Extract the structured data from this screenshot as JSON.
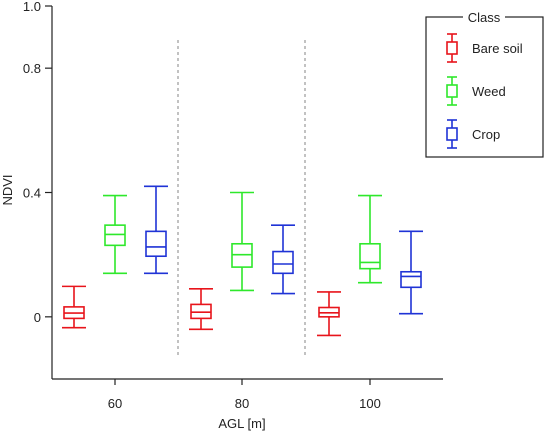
{
  "chart_data": {
    "type": "box",
    "xlabel": "AGL [m]",
    "ylabel": "NDVI",
    "ylim": [
      -0.2,
      1.0
    ],
    "yticks": [
      {
        "value": 0,
        "label": "0"
      },
      {
        "value": 0.4,
        "label": "0.4"
      },
      {
        "value": 0.8,
        "label": "0.8"
      },
      {
        "value": 1.0,
        "label": "1.0"
      }
    ],
    "categories": [
      "60",
      "80",
      "100"
    ],
    "legend": {
      "title": "Class",
      "placement": "top-right"
    },
    "series": [
      {
        "name": "Bare soil",
        "color": "#e8141b",
        "boxes": [
          {
            "min": -0.035,
            "q1": -0.005,
            "median": 0.012,
            "q3": 0.032,
            "max": 0.098
          },
          {
            "min": -0.04,
            "q1": -0.005,
            "median": 0.015,
            "q3": 0.04,
            "max": 0.09
          },
          {
            "min": -0.06,
            "q1": 0.0,
            "median": 0.013,
            "q3": 0.03,
            "max": 0.08
          }
        ]
      },
      {
        "name": "Weed",
        "color": "#2ee82b",
        "boxes": [
          {
            "min": 0.14,
            "q1": 0.23,
            "median": 0.265,
            "q3": 0.295,
            "max": 0.39
          },
          {
            "min": 0.085,
            "q1": 0.16,
            "median": 0.2,
            "q3": 0.235,
            "max": 0.4
          },
          {
            "min": 0.11,
            "q1": 0.155,
            "median": 0.175,
            "q3": 0.235,
            "max": 0.39
          }
        ]
      },
      {
        "name": "Crop",
        "color": "#1f33d6",
        "boxes": [
          {
            "min": 0.14,
            "q1": 0.195,
            "median": 0.225,
            "q3": 0.275,
            "max": 0.42
          },
          {
            "min": 0.075,
            "q1": 0.14,
            "median": 0.17,
            "q3": 0.21,
            "max": 0.295
          },
          {
            "min": 0.01,
            "q1": 0.095,
            "median": 0.13,
            "q3": 0.145,
            "max": 0.275
          }
        ]
      }
    ]
  }
}
